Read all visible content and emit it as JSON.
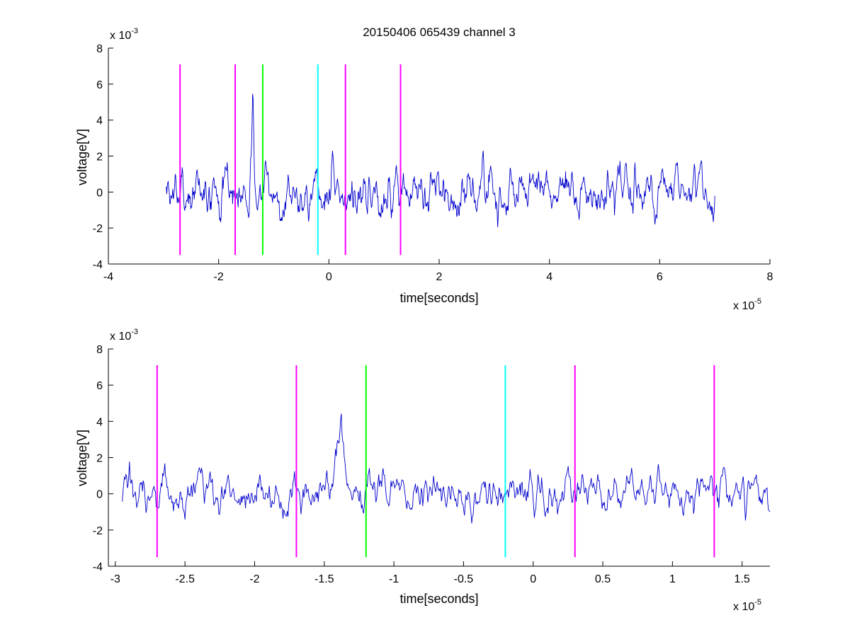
{
  "figure": {
    "title": "20150406 065439 channel 3",
    "background": "#ffffff",
    "signal_color": "#0000cc",
    "signal_source": "simulated noise trace with spikes; approximate"
  },
  "chart_data": [
    {
      "type": "line",
      "title": "20150406 065439 channel 3",
      "xlabel": "time[seconds]",
      "ylabel": "voltage[V]",
      "x_exponent_label": "x 10",
      "x_exponent": "-5",
      "y_exponent_label": "x 10",
      "y_exponent": "-3",
      "xlim": [
        -4,
        8
      ],
      "ylim": [
        -4,
        8
      ],
      "xticks": [
        -4,
        -2,
        0,
        2,
        4,
        6,
        8
      ],
      "xtick_labels": [
        "-4",
        "-2",
        "0",
        "2",
        "4",
        "6",
        "8"
      ],
      "yticks": [
        -4,
        -2,
        0,
        2,
        4,
        6,
        8
      ],
      "ytick_labels": [
        "-4",
        "-2",
        "0",
        "2",
        "4",
        "6",
        "8"
      ],
      "signal_range": [
        -2.95,
        7.0
      ],
      "markers": [
        {
          "x": -2.7,
          "color": "#ff00ff",
          "y_range": [
            -3.5,
            7.1
          ]
        },
        {
          "x": -1.7,
          "color": "#ff00ff",
          "y_range": [
            -3.5,
            7.1
          ]
        },
        {
          "x": -1.2,
          "color": "#00ff00",
          "y_range": [
            -3.5,
            7.1
          ]
        },
        {
          "x": -0.2,
          "color": "#00ffff",
          "y_range": [
            -3.5,
            7.1
          ]
        },
        {
          "x": 0.3,
          "color": "#ff00ff",
          "y_range": [
            -3.5,
            7.1
          ]
        },
        {
          "x": 1.3,
          "color": "#ff00ff",
          "y_range": [
            -3.5,
            7.1
          ]
        }
      ]
    },
    {
      "type": "line",
      "title": "",
      "xlabel": "time[seconds]",
      "ylabel": "voltage[V]",
      "x_exponent_label": "x 10",
      "x_exponent": "-5",
      "y_exponent_label": "x 10",
      "y_exponent": "-3",
      "xlim": [
        -3.05,
        1.7
      ],
      "ylim": [
        -4,
        8
      ],
      "xticks": [
        -3,
        -2.5,
        -2,
        -1.5,
        -1,
        -0.5,
        0,
        0.5,
        1,
        1.5
      ],
      "xtick_labels": [
        "-3",
        "-2.5",
        "-2",
        "-1.5",
        "-1",
        "-0.5",
        "0",
        "0.5",
        "1",
        "1.5"
      ],
      "yticks": [
        -4,
        -2,
        0,
        2,
        4,
        6,
        8
      ],
      "ytick_labels": [
        "-4",
        "-2",
        "0",
        "2",
        "4",
        "6",
        "8"
      ],
      "signal_range": [
        -2.95,
        1.7
      ],
      "markers": [
        {
          "x": -2.7,
          "color": "#ff00ff",
          "y_range": [
            -3.5,
            7.1
          ]
        },
        {
          "x": -1.7,
          "color": "#ff00ff",
          "y_range": [
            -3.5,
            7.1
          ]
        },
        {
          "x": -1.2,
          "color": "#00ff00",
          "y_range": [
            -3.5,
            7.1
          ]
        },
        {
          "x": -0.2,
          "color": "#00ffff",
          "y_range": [
            -3.5,
            7.1
          ]
        },
        {
          "x": 0.3,
          "color": "#ff00ff",
          "y_range": [
            -3.5,
            7.1
          ]
        },
        {
          "x": 1.3,
          "color": "#ff00ff",
          "y_range": [
            -3.5,
            7.1
          ]
        }
      ]
    }
  ]
}
